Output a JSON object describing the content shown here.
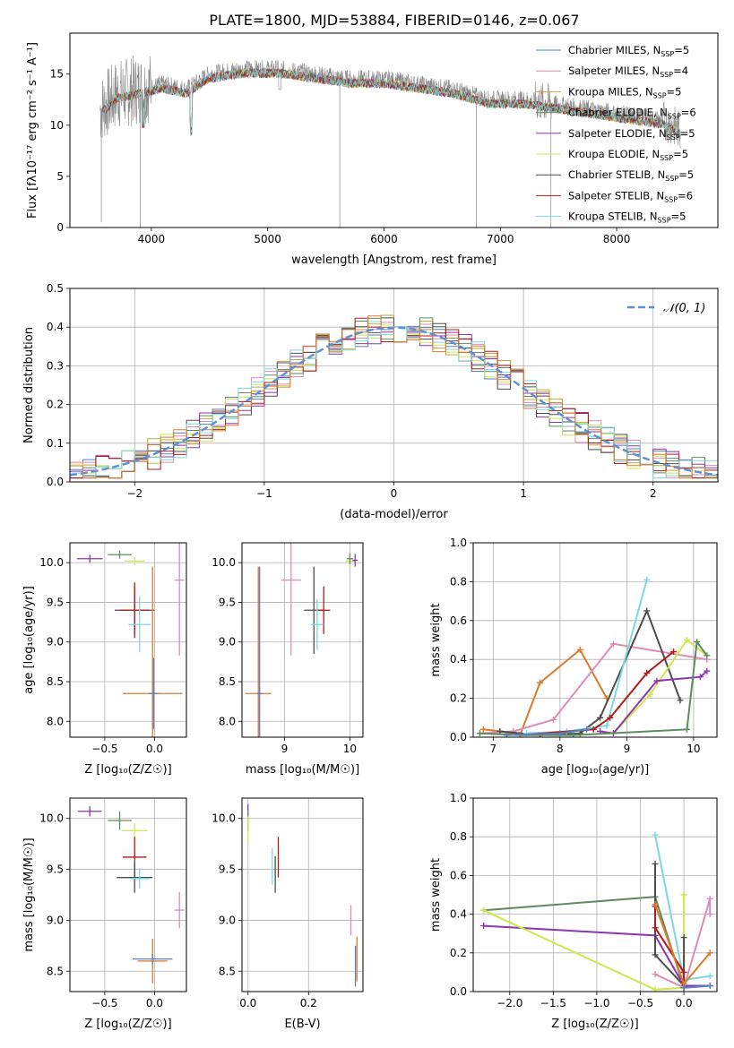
{
  "figure_title": "PLATE=1800, MJD=53884, FIBERID=0146, z=0.067",
  "palette": [
    "#5b7fbf",
    "#e08bb5",
    "#c8a23c",
    "#5e8c5e",
    "#8e35b0",
    "#cde84c",
    "#4d4d4d",
    "#b31b1b",
    "#7dd8e0",
    "#dd7a2a",
    "#888888"
  ],
  "chart_data": [
    {
      "id": "spectrum",
      "type": "line",
      "title": "PLATE=1800, MJD=53884, FIBERID=0146, z=0.067",
      "xlabel": "wavelength [Angstrom, rest frame]",
      "ylabel": "Flux [fλ10⁻¹⁷ erg cm⁻² s⁻¹ A⁻¹]",
      "xlim": [
        3300,
        8870
      ],
      "ylim": [
        0,
        19
      ],
      "xticks": [
        4000,
        5000,
        6000,
        7000,
        8000
      ],
      "yticks": [
        0,
        5,
        10,
        15
      ],
      "grid": false,
      "legend_position": "upper right",
      "data_series": {
        "name": "data",
        "color": "#888888",
        "x": [
          3560,
          3700,
          3900,
          4100,
          4300,
          4500,
          4800,
          5100,
          5400,
          5700,
          6000,
          6300,
          6600,
          6900,
          7200,
          7500,
          7800,
          8100,
          8400,
          8550
        ],
        "y": [
          11.5,
          13.0,
          13.5,
          14.0,
          13.5,
          15.0,
          15.5,
          15.5,
          15.0,
          14.5,
          14.5,
          14.0,
          13.5,
          12.5,
          12.5,
          12.0,
          11.5,
          11.0,
          10.5,
          9.5
        ]
      },
      "series": [
        {
          "name": "Chabrier MILES, N_SSP=5",
          "color": "#5b7fbf"
        },
        {
          "name": "Salpeter MILES, N_SSP=4",
          "color": "#e08bb5"
        },
        {
          "name": "Kroupa MILES, N_SSP=5",
          "color": "#c8a23c"
        },
        {
          "name": "Chabrier ELODIE, N_SSP=6",
          "color": "#5e8c5e"
        },
        {
          "name": "Salpeter ELODIE, N_SSP=5",
          "color": "#8e35b0"
        },
        {
          "name": "Kroupa ELODIE, N_SSP=5",
          "color": "#cde84c"
        },
        {
          "name": "Chabrier STELIB, N_SSP=5",
          "color": "#4d4d4d"
        },
        {
          "name": "Salpeter STELIB, N_SSP=6",
          "color": "#b31b1b"
        },
        {
          "name": "Kroupa STELIB, N_SSP=5",
          "color": "#7dd8e0"
        }
      ],
      "legend_labels": [
        [
          "Chabrier MILES, N",
          "SSP",
          "=5"
        ],
        [
          "Salpeter MILES, N",
          "SSP",
          "=4"
        ],
        [
          "Kroupa MILES, N",
          "SSP",
          "=5"
        ],
        [
          "Chabrier ELODIE, N",
          "SSP",
          "=6"
        ],
        [
          "Salpeter ELODIE, N",
          "SSP",
          "=5"
        ],
        [
          "Kroupa ELODIE, N",
          "SSP",
          "=5"
        ],
        [
          "Chabrier STELIB, N",
          "SSP",
          "=5"
        ],
        [
          "Salpeter STELIB, N",
          "SSP",
          "=6"
        ],
        [
          "Kroupa STELIB, N",
          "SSP",
          "=5"
        ]
      ]
    },
    {
      "id": "residuals",
      "type": "bar",
      "xlabel": "(data-model)/error",
      "ylabel": "Normed distribution",
      "xlim": [
        -2.5,
        2.5
      ],
      "ylim": [
        0,
        0.5
      ],
      "xticks": [
        -2,
        -1,
        0,
        1,
        2
      ],
      "xtick_labels": [
        "−2",
        "−1",
        "0",
        "1",
        "2"
      ],
      "yticks": [
        0.0,
        0.1,
        0.2,
        0.3,
        0.4,
        0.5
      ],
      "ytick_labels": [
        "0.0",
        "0.1",
        "0.2",
        "0.3",
        "0.4",
        "0.5"
      ],
      "grid": true,
      "bin_edges_start": -2.5,
      "bin_width": 0.1,
      "overlay": {
        "name": "𝒩(0, 1)",
        "type": "dashed-line",
        "color": "#5b8fd6",
        "function": "normal(0,1)"
      },
      "legend_position": "upper right"
    },
    {
      "id": "age-vs-Z",
      "type": "scatter",
      "xlabel": "Z [log₁₀(Z/Z☉)]",
      "ylabel": "age  [log₁₀(age/yr)]",
      "xlim": [
        -0.85,
        0.32
      ],
      "ylim": [
        7.8,
        10.25
      ],
      "xticks": [
        -0.5,
        0.0
      ],
      "xtick_labels": [
        "−0.5",
        "0.0"
      ],
      "yticks": [
        8.0,
        8.5,
        9.0,
        9.5,
        10.0
      ],
      "ytick_labels": [
        "8.0",
        "8.5",
        "9.0",
        "9.5",
        "10.0"
      ],
      "grid": true,
      "points": [
        {
          "x": -0.65,
          "y": 10.05,
          "xerr": 0.13,
          "yerr": 0.05,
          "color": "#8e35b0"
        },
        {
          "x": -0.35,
          "y": 10.1,
          "xerr": 0.12,
          "yerr": 0.05,
          "color": "#5e8c5e"
        },
        {
          "x": -0.2,
          "y": 10.02,
          "xerr": 0.1,
          "yerr": 0.05,
          "color": "#cde84c"
        },
        {
          "x": -0.2,
          "y": 9.4,
          "xerr": 0.2,
          "yerr": 0.3,
          "color": "#4d4d4d"
        },
        {
          "x": -0.2,
          "y": 9.4,
          "xerr": 0.15,
          "yerr": 0.35,
          "color": "#b31b1b"
        },
        {
          "x": -0.15,
          "y": 9.22,
          "xerr": 0.11,
          "yerr": 0.35,
          "color": "#7dd8e0"
        },
        {
          "x": 0.25,
          "y": 9.78,
          "xerr": 0.05,
          "yerr": 0.95,
          "color": "#e08bb5"
        },
        {
          "x": -0.02,
          "y": 8.35,
          "xerr": 0.3,
          "yerr": 1.6,
          "color": "#dd7a2a"
        },
        {
          "x": -0.01,
          "y": 8.35,
          "xerr": 0.05,
          "yerr": 0.45,
          "color": "#5b7fbf"
        }
      ]
    },
    {
      "id": "age-vs-mass",
      "type": "scatter",
      "xlabel": "mass [log₁₀(M/M☉)]",
      "xlim": [
        8.35,
        10.2
      ],
      "ylim": [
        7.8,
        10.25
      ],
      "xticks": [
        9,
        10
      ],
      "xtick_labels": [
        "9",
        "10"
      ],
      "yticks": [
        8.0,
        8.5,
        9.0,
        9.5,
        10.0
      ],
      "ytick_labels": [
        "8.0",
        "8.5",
        "9.0",
        "9.5",
        "10.0"
      ],
      "grid": true,
      "points": [
        {
          "x": 10.0,
          "y": 10.02,
          "xerr": 0.07,
          "yerr": 0.06,
          "color": "#cde84c"
        },
        {
          "x": 10.0,
          "y": 10.05,
          "xerr": 0.05,
          "yerr": 0.07,
          "color": "#5e8c5e"
        },
        {
          "x": 10.08,
          "y": 10.03,
          "xerr": 0.04,
          "yerr": 0.08,
          "color": "#8e35b0"
        },
        {
          "x": 9.45,
          "y": 9.4,
          "xerr": 0.15,
          "yerr": 0.55,
          "color": "#4d4d4d"
        },
        {
          "x": 9.6,
          "y": 9.4,
          "xerr": 0.1,
          "yerr": 0.3,
          "color": "#b31b1b"
        },
        {
          "x": 9.5,
          "y": 9.22,
          "xerr": 0.1,
          "yerr": 0.32,
          "color": "#7dd8e0"
        },
        {
          "x": 9.1,
          "y": 9.78,
          "xerr": 0.15,
          "yerr": 0.95,
          "color": "#e08bb5"
        },
        {
          "x": 8.6,
          "y": 8.35,
          "xerr": 0.2,
          "yerr": 1.6,
          "color": "#dd7a2a"
        },
        {
          "x": 8.62,
          "y": 8.35,
          "xerr": 0.04,
          "yerr": 1.6,
          "color": "#5b7fbf"
        }
      ]
    },
    {
      "id": "mass-weight-vs-age",
      "type": "line",
      "xlabel": "age  [log₁₀(age/yr)]",
      "ylabel": "mass weight",
      "xlim": [
        6.7,
        10.35
      ],
      "ylim": [
        0,
        1.0
      ],
      "xticks": [
        7,
        8,
        9,
        10
      ],
      "xtick_labels": [
        "7",
        "8",
        "9",
        "10"
      ],
      "yticks": [
        0.0,
        0.2,
        0.4,
        0.6,
        0.8,
        1.0
      ],
      "ytick_labels": [
        "0.0",
        "0.2",
        "0.4",
        "0.6",
        "0.8",
        "1.0"
      ],
      "grid": true,
      "series": [
        {
          "color": "#dd7a2a",
          "x": [
            6.85,
            7.1,
            7.4,
            7.7,
            8.3,
            8.7
          ],
          "y": [
            0.04,
            0.03,
            0.01,
            0.28,
            0.45,
            0.2
          ]
        },
        {
          "color": "#e08bb5",
          "x": [
            6.8,
            7.3,
            7.9,
            8.8,
            10.2
          ],
          "y": [
            0.02,
            0.03,
            0.09,
            0.48,
            0.4
          ]
        },
        {
          "color": "#4d4d4d",
          "x": [
            7.1,
            7.7,
            8.3,
            8.6,
            9.3,
            9.8
          ],
          "y": [
            0.03,
            0.01,
            0.02,
            0.1,
            0.65,
            0.19
          ]
        },
        {
          "color": "#7dd8e0",
          "x": [
            7.5,
            8.1,
            8.7,
            9.3
          ],
          "y": [
            0.02,
            0.03,
            0.06,
            0.81
          ]
        },
        {
          "color": "#b31b1b",
          "x": [
            7.4,
            8.5,
            8.75,
            9.3,
            9.7
          ],
          "y": [
            0.01,
            0.04,
            0.1,
            0.33,
            0.44
          ]
        },
        {
          "color": "#cde84c",
          "x": [
            8.8,
            9.35,
            9.9,
            10.2
          ],
          "y": [
            0.02,
            0.22,
            0.5,
            0.42
          ]
        },
        {
          "color": "#8e35b0",
          "x": [
            8.6,
            8.8,
            9.45,
            10.1,
            10.2
          ],
          "y": [
            0.03,
            0.02,
            0.29,
            0.31,
            0.34
          ]
        },
        {
          "color": "#5e8c5e",
          "x": [
            6.8,
            7.4,
            8.2,
            9.9,
            10.05,
            10.2
          ],
          "y": [
            0.02,
            0.01,
            0.01,
            0.04,
            0.49,
            0.42
          ]
        },
        {
          "color": "#5b7fbf",
          "x": [
            7.2,
            8.0,
            8.4
          ],
          "y": [
            0.01,
            0.02,
            0.04
          ]
        }
      ]
    },
    {
      "id": "mass-vs-Z",
      "type": "scatter",
      "xlabel": "Z [log₁₀(Z/Z☉)]",
      "ylabel": "mass [log₁₀(M/M☉)]",
      "xlim": [
        -0.85,
        0.32
      ],
      "ylim": [
        8.3,
        10.2
      ],
      "xticks": [
        -0.5,
        0.0
      ],
      "xtick_labels": [
        "−0.5",
        "0.0"
      ],
      "yticks": [
        8.5,
        9.0,
        9.5,
        10.0
      ],
      "ytick_labels": [
        "8.5",
        "9.0",
        "9.5",
        "10.0"
      ],
      "grid": true,
      "points": [
        {
          "x": -0.65,
          "y": 10.07,
          "xerr": 0.12,
          "yerr": 0.05,
          "color": "#8e35b0"
        },
        {
          "x": -0.35,
          "y": 9.98,
          "xerr": 0.12,
          "yerr": 0.09,
          "color": "#5e8c5e"
        },
        {
          "x": -0.2,
          "y": 9.88,
          "xerr": 0.13,
          "yerr": 0.07,
          "color": "#cde84c"
        },
        {
          "x": -0.2,
          "y": 9.62,
          "xerr": 0.12,
          "yerr": 0.2,
          "color": "#b31b1b"
        },
        {
          "x": -0.2,
          "y": 9.42,
          "xerr": 0.18,
          "yerr": 0.15,
          "color": "#4d4d4d"
        },
        {
          "x": -0.15,
          "y": 9.41,
          "xerr": 0.1,
          "yerr": 0.1,
          "color": "#7dd8e0"
        },
        {
          "x": 0.25,
          "y": 9.1,
          "xerr": 0.05,
          "yerr": 0.18,
          "color": "#e08bb5"
        },
        {
          "x": -0.02,
          "y": 8.6,
          "xerr": 0.15,
          "yerr": 0.22,
          "color": "#dd7a2a"
        },
        {
          "x": -0.02,
          "y": 8.62,
          "xerr": 0.2,
          "yerr": 0.05,
          "color": "#5b7fbf"
        }
      ]
    },
    {
      "id": "mass-vs-EBV",
      "type": "scatter",
      "xlabel": "E(B-V)",
      "xlim": [
        -0.02,
        0.38
      ],
      "ylim": [
        8.3,
        10.2
      ],
      "xticks": [
        0.0,
        0.2
      ],
      "xtick_labels": [
        "0.0",
        "0.2"
      ],
      "yticks": [
        8.5,
        9.0,
        9.5,
        10.0
      ],
      "ytick_labels": [
        "8.5",
        "9.0",
        "9.5",
        "10.0"
      ],
      "grid": true,
      "points": [
        {
          "x": 0.0,
          "y": 10.07,
          "xerr": 0.0,
          "yerr": 0.07,
          "color": "#8e35b0"
        },
        {
          "x": 0.0,
          "y": 9.98,
          "xerr": 0.0,
          "yerr": 0.1,
          "color": "#5e8c5e"
        },
        {
          "x": 0.0,
          "y": 9.9,
          "xerr": 0.0,
          "yerr": 0.12,
          "color": "#cde84c"
        },
        {
          "x": 0.1,
          "y": 9.62,
          "xerr": 0.0,
          "yerr": 0.2,
          "color": "#b31b1b"
        },
        {
          "x": 0.09,
          "y": 9.45,
          "xerr": 0.0,
          "yerr": 0.18,
          "color": "#4d4d4d"
        },
        {
          "x": 0.08,
          "y": 9.53,
          "xerr": 0.0,
          "yerr": 0.18,
          "color": "#7dd8e0"
        },
        {
          "x": 0.34,
          "y": 9.0,
          "xerr": 0.0,
          "yerr": 0.15,
          "color": "#e08bb5"
        },
        {
          "x": 0.36,
          "y": 8.62,
          "xerr": 0.0,
          "yerr": 0.22,
          "color": "#dd7a2a"
        },
        {
          "x": 0.355,
          "y": 8.55,
          "xerr": 0.0,
          "yerr": 0.2,
          "color": "#5b7fbf"
        }
      ]
    },
    {
      "id": "mass-weight-vs-Z",
      "type": "line",
      "xlabel": "Z [log₁₀(Z/Z☉)]",
      "ylabel": "mass weight",
      "xlim": [
        -2.42,
        0.38
      ],
      "ylim": [
        0,
        1.0
      ],
      "xticks": [
        -2.0,
        -1.5,
        -1.0,
        -0.5,
        0.0
      ],
      "xtick_labels": [
        "−2.0",
        "−1.5",
        "−1.0",
        "−0.5",
        "0.0"
      ],
      "yticks": [
        0.0,
        0.2,
        0.4,
        0.6,
        0.8,
        1.0
      ],
      "ytick_labels": [
        "0.0",
        "0.2",
        "0.4",
        "0.6",
        "0.8",
        "1.0"
      ],
      "grid": true,
      "series": [
        {
          "color": "#5e8c5e",
          "x": [
            -2.3,
            -0.33,
            0.0,
            0.3
          ],
          "y": [
            0.42,
            0.49,
            0.02,
            0.03
          ]
        },
        {
          "color": "#8e35b0",
          "x": [
            -2.3,
            -0.33,
            0.0,
            0.3
          ],
          "y": [
            0.34,
            0.29,
            0.03,
            0.03
          ]
        },
        {
          "color": "#cde84c",
          "x": [
            -2.3,
            -0.33,
            0.0,
            0.0
          ],
          "y": [
            0.42,
            0.01,
            0.02,
            0.5
          ]
        },
        {
          "color": "#4d4d4d",
          "x": [
            -0.33,
            -0.33,
            0.0,
            0.0
          ],
          "y": [
            0.66,
            0.19,
            0.03,
            0.28
          ]
        },
        {
          "color": "#7dd8e0",
          "x": [
            -0.33,
            0.0,
            0.3
          ],
          "y": [
            0.81,
            0.06,
            0.08
          ]
        },
        {
          "color": "#b31b1b",
          "x": [
            -0.33,
            -0.33,
            0.0,
            0.0
          ],
          "y": [
            0.44,
            0.33,
            0.1,
            0.02
          ]
        },
        {
          "color": "#e08bb5",
          "x": [
            -0.33,
            0.0,
            0.3,
            0.3
          ],
          "y": [
            0.09,
            0.02,
            0.48,
            0.4
          ]
        },
        {
          "color": "#dd7a2a",
          "x": [
            -0.33,
            0.0,
            0.3
          ],
          "y": [
            0.45,
            0.04,
            0.2
          ]
        },
        {
          "color": "#5b7fbf",
          "x": [
            0.0,
            0.3
          ],
          "y": [
            0.02,
            0.03
          ]
        }
      ]
    }
  ]
}
